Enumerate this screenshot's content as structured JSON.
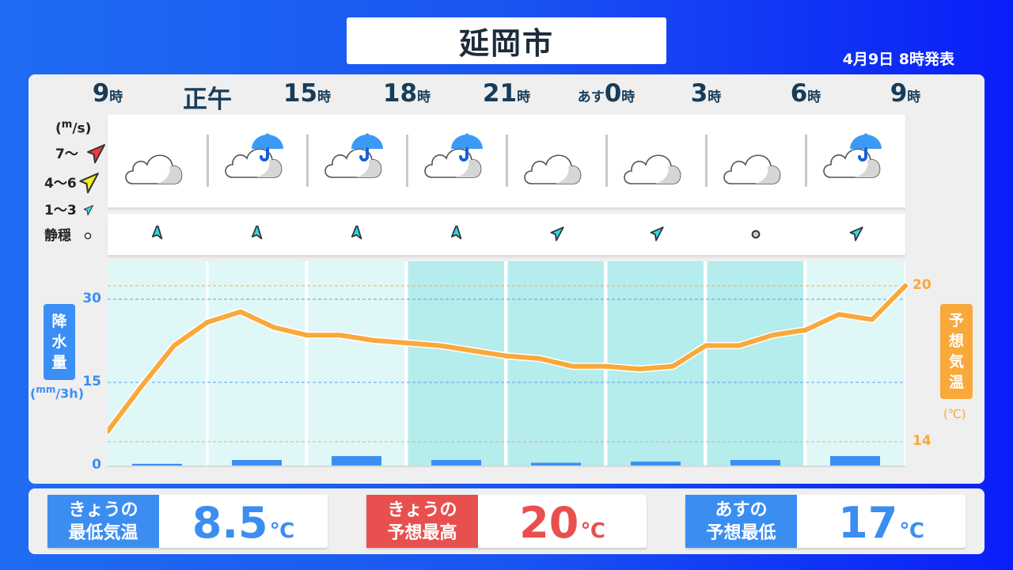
{
  "title": "延岡市",
  "issued": "4月9日 8時発表",
  "hours": [
    {
      "prefix": "",
      "num": "9",
      "unit": "時"
    },
    {
      "prefix": "",
      "num": "正午",
      "unit": ""
    },
    {
      "prefix": "",
      "num": "15",
      "unit": "時"
    },
    {
      "prefix": "",
      "num": "18",
      "unit": "時"
    },
    {
      "prefix": "",
      "num": "21",
      "unit": "時"
    },
    {
      "prefix": "あす",
      "num": "0",
      "unit": "時"
    },
    {
      "prefix": "",
      "num": "3",
      "unit": "時"
    },
    {
      "prefix": "",
      "num": "6",
      "unit": "時"
    },
    {
      "prefix": "",
      "num": "9",
      "unit": "時"
    }
  ],
  "weather": [
    "cloudy",
    "rain",
    "rain",
    "rain",
    "cloudy",
    "cloudy",
    "cloudy",
    "rain"
  ],
  "wind": [
    {
      "speed": "1〜3",
      "direction": "N"
    },
    {
      "speed": "1〜3",
      "direction": "N"
    },
    {
      "speed": "1〜3",
      "direction": "N"
    },
    {
      "speed": "1〜3",
      "direction": "N"
    },
    {
      "speed": "1〜3",
      "direction": "NE"
    },
    {
      "speed": "1〜3",
      "direction": "NE"
    },
    {
      "speed": "静穏",
      "direction": "calm"
    },
    {
      "speed": "1〜3",
      "direction": "NE"
    }
  ],
  "wind_legend": {
    "unit_open": "(",
    "unit_m": "m",
    "unit_s": "/s)",
    "items": [
      {
        "label": "7〜",
        "color": "#f0383c"
      },
      {
        "label": "4〜6",
        "color": "#f8f020"
      },
      {
        "label": "1〜3",
        "color": "#30d8e8"
      },
      {
        "label": "静穏",
        "color": "#bbbbbb"
      }
    ]
  },
  "colors": {
    "temp_line": "#f9a83a",
    "precip_bar": "#3b8ef5",
    "band_day": "#e0f7f8",
    "band_night": "#b5ecec",
    "min_label": "#3b8ef0",
    "max_label": "#e8504f"
  },
  "chart_data": {
    "type": "line+bar",
    "precip_axis_label": [
      "降",
      "水",
      "量"
    ],
    "precip_unit": {
      "open": "(",
      "mm": "mm",
      "rest": "/3h)"
    },
    "temp_axis_label": [
      "予",
      "想",
      "気",
      "温"
    ],
    "temp_unit": "(℃)",
    "precip_ylim": [
      0,
      30
    ],
    "precip_ticks": [
      "30",
      "15",
      "0"
    ],
    "temp_ylim": [
      14,
      20
    ],
    "temp_ticks": [
      "20",
      "14"
    ],
    "night_bands": [
      false,
      false,
      false,
      true,
      true,
      true,
      true,
      false
    ],
    "precip_mm": [
      0.3,
      1.0,
      1.7,
      1.0,
      0.5,
      0.7,
      1.0,
      1.7
    ],
    "temp_hourly_c": [
      14.4,
      16.1,
      17.7,
      18.6,
      19.0,
      18.4,
      18.1,
      18.1,
      17.9,
      17.8,
      17.7,
      17.5,
      17.3,
      17.2,
      16.9,
      16.9,
      16.8,
      16.9,
      17.7,
      17.7,
      18.1,
      18.3,
      18.9,
      18.7,
      20.0
    ]
  },
  "summary": [
    {
      "label1": "きょうの",
      "label2": "最低気温",
      "value": "8.5",
      "unit": "℃",
      "color": "#3b8ef0"
    },
    {
      "label1": "きょうの",
      "label2": "予想最高",
      "value": "20",
      "unit": "℃",
      "color": "#e8504f"
    },
    {
      "label1": "あすの",
      "label2": "予想最低",
      "value": "17",
      "unit": "℃",
      "color": "#3b8ef0"
    }
  ]
}
